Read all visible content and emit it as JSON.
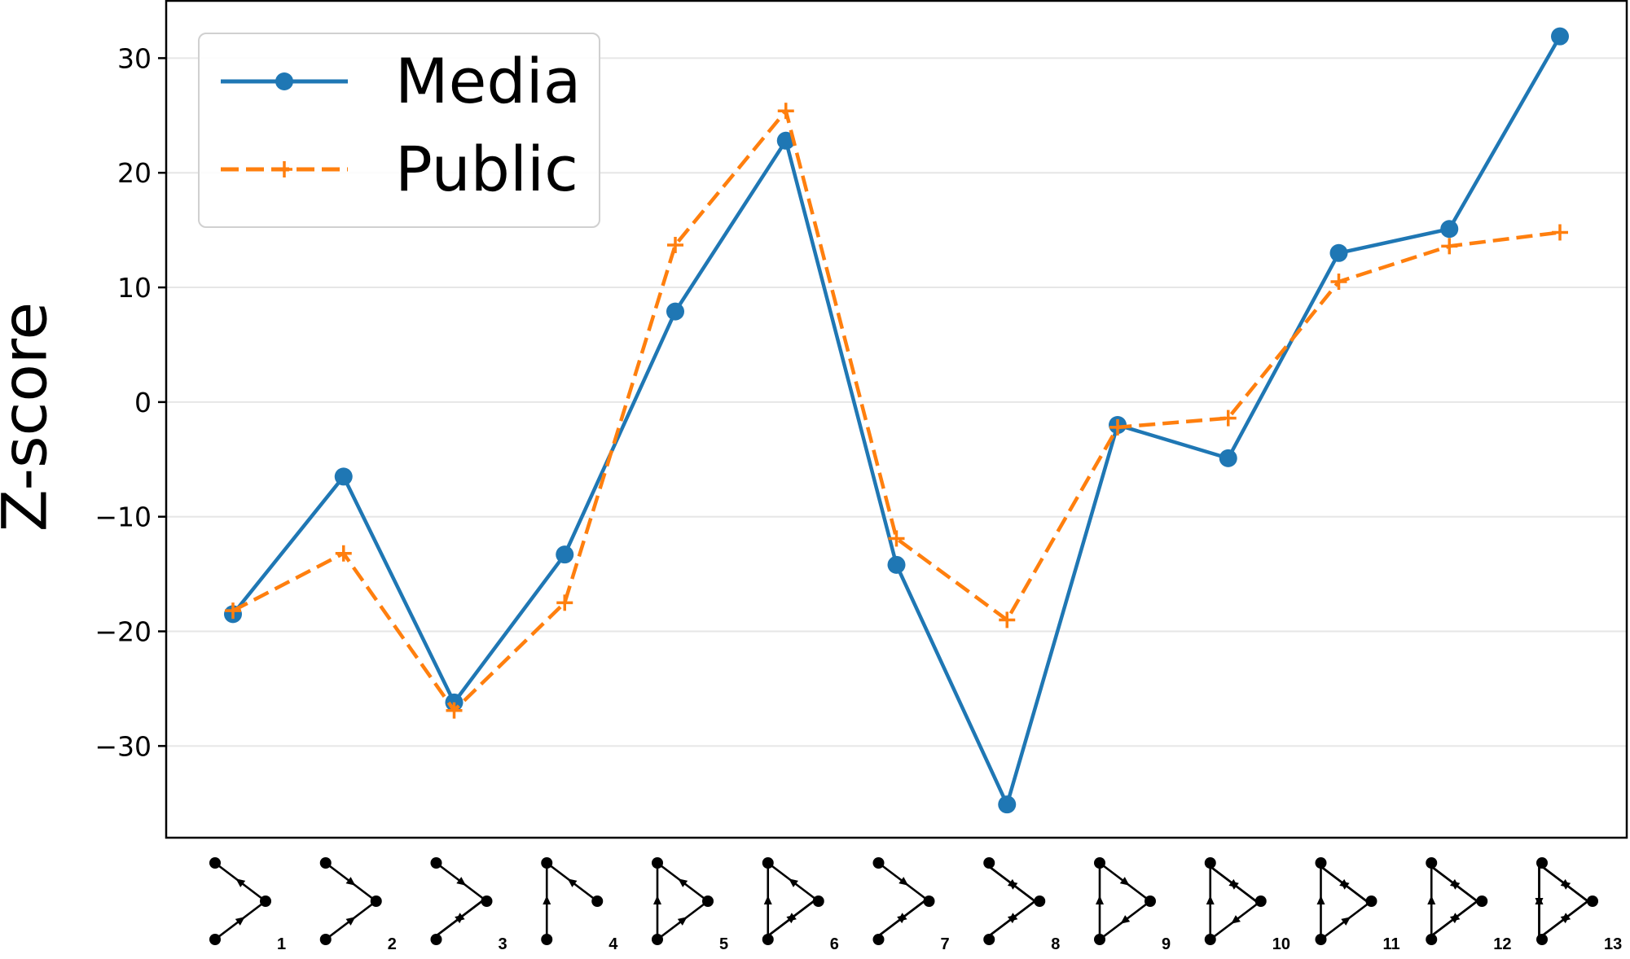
{
  "chart_data": {
    "type": "line",
    "ylabel": "Z-score",
    "ylim": [
      -38,
      35
    ],
    "yticks": [
      30,
      20,
      10,
      0,
      -10,
      -20,
      -30
    ],
    "ytick_labels": [
      "30",
      "20",
      "10",
      "0",
      "−10",
      "−20",
      "−30"
    ],
    "grid": "horizontal",
    "legend_position": "top-left",
    "categories": [
      "1",
      "2",
      "3",
      "4",
      "5",
      "6",
      "7",
      "8",
      "9",
      "10",
      "11",
      "12",
      "13"
    ],
    "series": [
      {
        "name": "Media",
        "color": "#1f77b4",
        "linestyle": "solid",
        "marker": "circle",
        "values": [
          -18.5,
          -6.5,
          -26.2,
          -13.3,
          7.9,
          22.8,
          -14.2,
          -35.1,
          -2.0,
          -4.9,
          13.0,
          15.1,
          31.9
        ]
      },
      {
        "name": "Public",
        "color": "#ff7f0e",
        "linestyle": "dashed",
        "marker": "plus",
        "values": [
          -18.2,
          -13.2,
          -26.9,
          -17.5,
          13.7,
          25.4,
          -11.9,
          -19.0,
          -2.2,
          -1.4,
          10.5,
          13.6,
          14.8
        ]
      }
    ],
    "x_tick_icons": "triad-motif-diagrams"
  }
}
